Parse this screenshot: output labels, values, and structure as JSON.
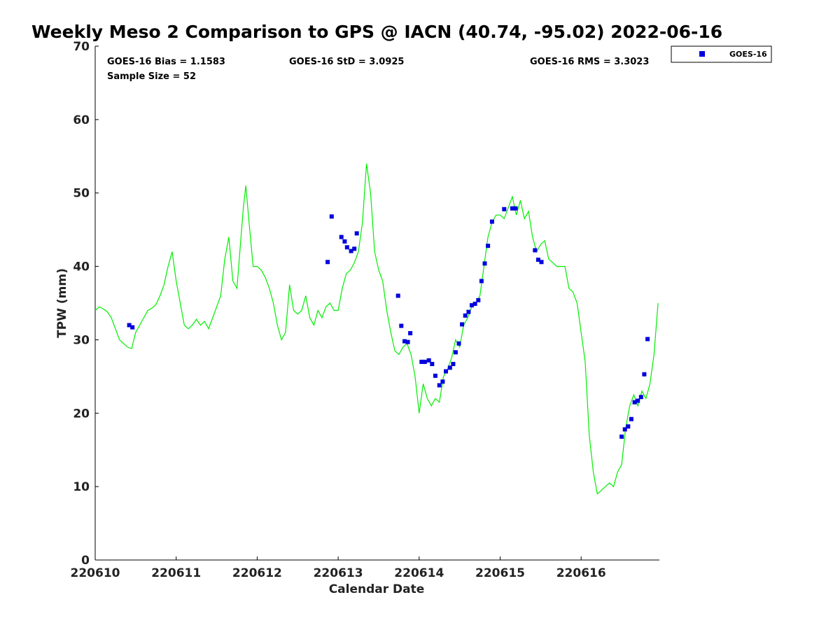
{
  "chart_data": {
    "type": "scatter",
    "title": "Weekly Meso 2 Comparison to GPS @ IACN (40.74, -95.02) 2022-06-16",
    "xlabel": "Calendar Date",
    "ylabel": "TPW (mm)",
    "xlim": [
      220610,
      220617
    ],
    "ylim": [
      0,
      70
    ],
    "x_ticks": [
      "220610",
      "220611",
      "220612",
      "220613",
      "220614",
      "220615",
      "220616"
    ],
    "y_ticks": [
      "0",
      "10",
      "20",
      "30",
      "40",
      "50",
      "60",
      "70"
    ],
    "grid": false,
    "legend_position": "top-right",
    "stats": {
      "bias": "GOES-16 Bias = 1.1583",
      "std": "GOES-16 StD = 3.0925",
      "rms": "GOES-16 RMS = 3.3023",
      "sample": "Sample Size = 52"
    },
    "series": [
      {
        "name": "GPS",
        "kind": "line",
        "color": "#00ee00",
        "x": [
          0,
          0.05,
          0.1,
          0.15,
          0.2,
          0.25,
          0.3,
          0.35,
          0.4,
          0.45,
          0.5,
          0.55,
          0.6,
          0.65,
          0.7,
          0.75,
          0.8,
          0.85,
          0.9,
          0.95,
          1.0,
          1.05,
          1.1,
          1.15,
          1.2,
          1.25,
          1.3,
          1.35,
          1.4,
          1.45,
          1.5,
          1.55,
          1.6,
          1.65,
          1.7,
          1.75,
          1.8,
          1.83,
          1.86,
          1.9,
          1.95,
          1.98,
          2.0,
          2.05,
          2.1,
          2.15,
          2.2,
          2.25,
          2.3,
          2.35,
          2.4,
          2.45,
          2.5,
          2.55,
          2.6,
          2.65,
          2.7,
          2.75,
          2.8,
          2.85,
          2.9,
          2.95,
          3.0,
          3.05,
          3.1,
          3.15,
          3.2,
          3.25,
          3.3,
          3.35,
          3.4,
          3.45,
          3.5,
          3.55,
          3.6,
          3.65,
          3.7,
          3.75,
          3.8,
          3.85,
          3.9,
          3.95,
          4.0,
          4.05,
          4.1,
          4.15,
          4.2,
          4.25,
          4.3,
          4.35,
          4.4,
          4.45,
          4.5,
          4.55,
          4.6,
          4.65,
          4.7,
          4.75,
          4.8,
          4.85,
          4.9,
          4.95,
          5.0,
          5.05,
          5.1,
          5.15,
          5.2,
          5.25,
          5.3,
          5.35,
          5.4,
          5.45,
          5.5,
          5.55,
          5.6,
          5.65,
          5.7,
          5.75,
          5.8,
          5.85,
          5.9,
          5.95,
          6.0,
          6.05,
          6.1,
          6.15,
          6.2,
          6.25,
          6.3,
          6.35,
          6.4,
          6.45,
          6.5,
          6.55,
          6.6,
          6.65,
          6.7,
          6.75,
          6.8,
          6.85,
          6.9,
          6.95
        ],
        "y": [
          34.0,
          34.5,
          34.2,
          33.8,
          33.0,
          31.5,
          30.0,
          29.5,
          29.0,
          28.8,
          31.0,
          32.0,
          33.0,
          34.0,
          34.3,
          34.8,
          36.0,
          37.5,
          40.0,
          42.0,
          38.0,
          35.0,
          32.0,
          31.5,
          32.0,
          32.8,
          32.0,
          32.5,
          31.5,
          33.0,
          34.5,
          36.0,
          41.0,
          44.0,
          38.0,
          37.0,
          44.0,
          48.0,
          51.0,
          46.0,
          40.0,
          40.0,
          40.0,
          39.5,
          38.5,
          37.0,
          35.0,
          32.0,
          30.0,
          31.0,
          37.5,
          34.0,
          33.5,
          34.0,
          36.0,
          33.0,
          32.0,
          34.0,
          33.0,
          34.5,
          35.0,
          34.0,
          34.0,
          37.0,
          39.0,
          39.5,
          40.5,
          42.0,
          46.0,
          54.0,
          50.0,
          42.0,
          39.5,
          38.0,
          34.0,
          31.0,
          28.5,
          28.0,
          29.0,
          29.5,
          28.0,
          25.0,
          20.0,
          24.0,
          22.0,
          21.0,
          22.0,
          21.5,
          25.0,
          26.0,
          27.5,
          30.0,
          29.0,
          32.0,
          33.0,
          34.5,
          35.0,
          36.0,
          40.0,
          44.0,
          46.0,
          47.0,
          47.0,
          46.5,
          48.0,
          49.5,
          47.0,
          49.0,
          46.5,
          47.5,
          44.0,
          42.0,
          43.0,
          43.5,
          41.0,
          40.5,
          40.0,
          40.0,
          40.0,
          37.0,
          36.5,
          35.0,
          31.0,
          27.0,
          17.0,
          12.0,
          9.0,
          9.5,
          10.0,
          10.5,
          10.0,
          12.0,
          13.0,
          18.0,
          21.0,
          22.5,
          21.0,
          23.0,
          22.0,
          24.0,
          28.0,
          35.0
        ]
      },
      {
        "name": "GOES-16",
        "kind": "scatter",
        "color": "#0000dd",
        "x": [
          0.42,
          0.46,
          2.87,
          2.92,
          3.04,
          3.08,
          3.11,
          3.16,
          3.2,
          3.23,
          3.74,
          3.78,
          3.82,
          3.86,
          3.89,
          4.03,
          4.07,
          4.12,
          4.16,
          4.2,
          4.25,
          4.29,
          4.33,
          4.38,
          4.42,
          4.45,
          4.49,
          4.53,
          4.57,
          4.61,
          4.65,
          4.69,
          4.73,
          4.77,
          4.81,
          4.85,
          4.9,
          5.05,
          5.15,
          5.19,
          5.43,
          5.47,
          5.51,
          6.5,
          6.54,
          6.58,
          6.62,
          6.66,
          6.7,
          6.74,
          6.78,
          6.82
        ],
        "y": [
          32.0,
          31.7,
          40.6,
          46.8,
          44.0,
          43.4,
          42.6,
          42.1,
          42.4,
          44.5,
          36.0,
          31.9,
          29.8,
          29.7,
          30.9,
          27.0,
          27.0,
          27.2,
          26.7,
          25.1,
          23.8,
          24.3,
          25.7,
          26.2,
          26.7,
          28.3,
          29.5,
          32.1,
          33.3,
          33.8,
          34.7,
          34.9,
          35.4,
          38.0,
          40.4,
          42.8,
          46.1,
          47.8,
          47.9,
          47.9,
          42.2,
          40.9,
          40.6,
          16.8,
          17.8,
          18.2,
          19.2,
          21.5,
          21.7,
          22.2,
          25.3,
          30.1
        ]
      }
    ]
  }
}
